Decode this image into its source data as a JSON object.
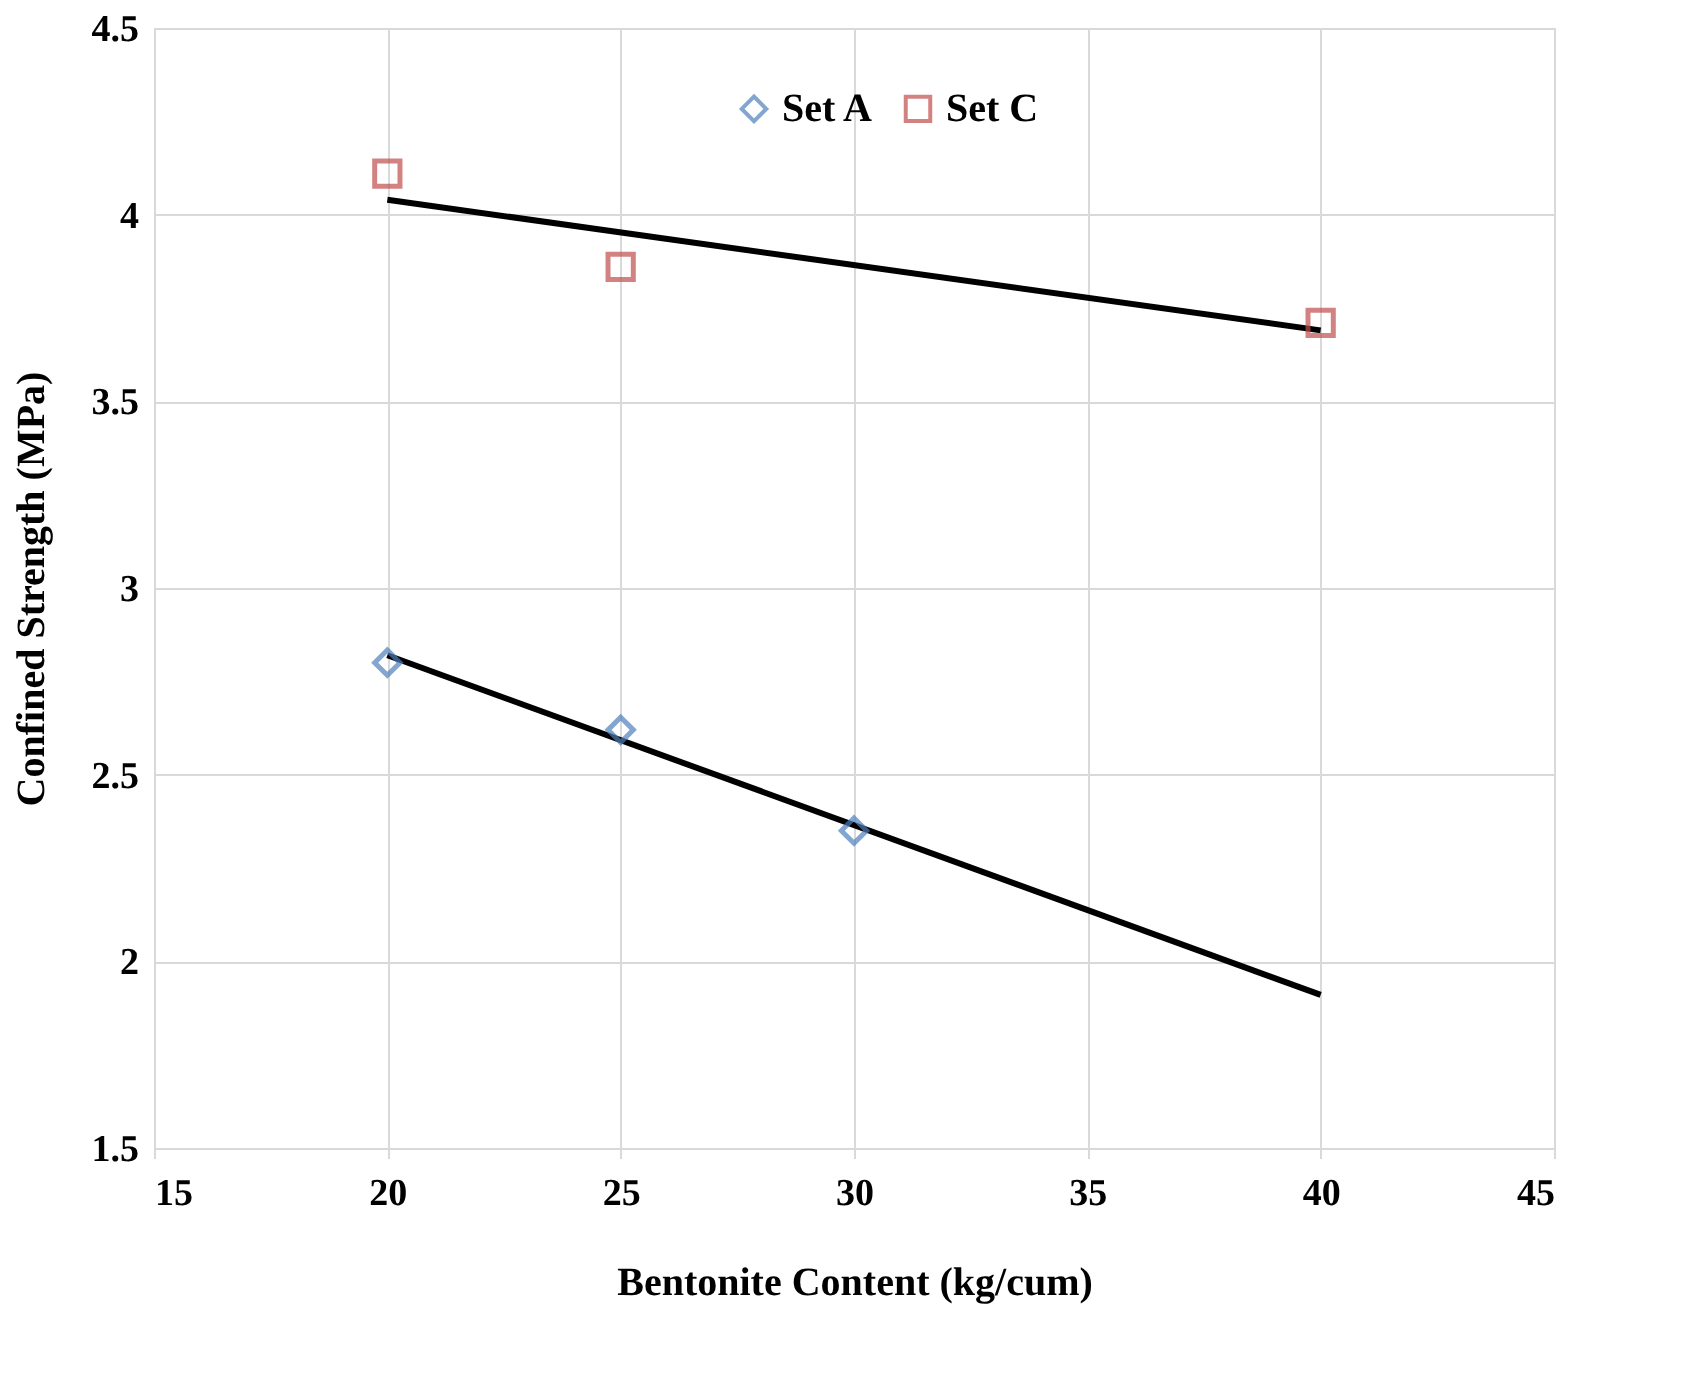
{
  "chart_data": {
    "type": "scatter",
    "xlabel": "Bentonite Content (kg/cum)",
    "ylabel": "Confined Strength (MPa)",
    "xlim": [
      15,
      45
    ],
    "xticks": [
      15,
      20,
      25,
      30,
      35,
      40,
      45
    ],
    "ylim": [
      1.5,
      4.5
    ],
    "yticks": [
      1.5,
      2,
      2.5,
      3,
      3.5,
      4,
      4.5
    ],
    "grid": true,
    "legend": "top",
    "series": [
      {
        "name": "Set A",
        "marker": "diamond",
        "color": "#4f81bd",
        "x": [
          20,
          25,
          30
        ],
        "values": [
          2.8,
          2.62,
          2.35
        ]
      },
      {
        "name": "Set C",
        "marker": "square",
        "color": "#c0504d",
        "x": [
          20,
          25,
          40
        ],
        "values": [
          4.11,
          3.86,
          3.71
        ]
      },
      {
        "type": "line",
        "color": "#000000",
        "line_style": "solid",
        "x": [
          20,
          40
        ],
        "values": [
          2.82,
          1.91
        ]
      },
      {
        "type": "line",
        "color": "#000000",
        "line_style": "solid",
        "x": [
          20,
          40
        ],
        "values": [
          4.04,
          3.69
        ]
      }
    ]
  }
}
